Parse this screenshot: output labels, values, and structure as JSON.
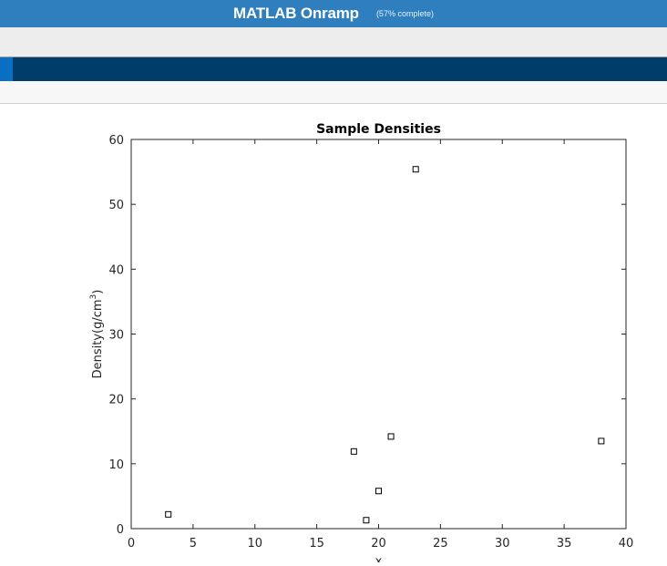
{
  "header": {
    "title": "MATLAB Onramp",
    "progress": "(57% complete)"
  },
  "colors": {
    "header_bg": "#2f7fbf",
    "nav_bg": "#003d6b",
    "nav_accent": "#0a6fc2"
  },
  "chart_data": {
    "type": "scatter",
    "title": "Sample Densities",
    "xlabel": "x",
    "ylabel": "Density(g/cm",
    "ylabel_sup": "3",
    "ylabel_close": ")",
    "xlim": [
      0,
      40
    ],
    "ylim": [
      0,
      60
    ],
    "xticks": [
      0,
      5,
      10,
      15,
      20,
      25,
      30,
      35,
      40
    ],
    "yticks": [
      0,
      10,
      20,
      30,
      40,
      50,
      60
    ],
    "grid": false,
    "marker": "square",
    "points": [
      {
        "x": 3,
        "y": 2.2
      },
      {
        "x": 18,
        "y": 11.9
      },
      {
        "x": 19,
        "y": 1.3
      },
      {
        "x": 20,
        "y": 5.8
      },
      {
        "x": 21,
        "y": 14.2
      },
      {
        "x": 23,
        "y": 55.4
      },
      {
        "x": 38,
        "y": 13.5
      }
    ]
  }
}
